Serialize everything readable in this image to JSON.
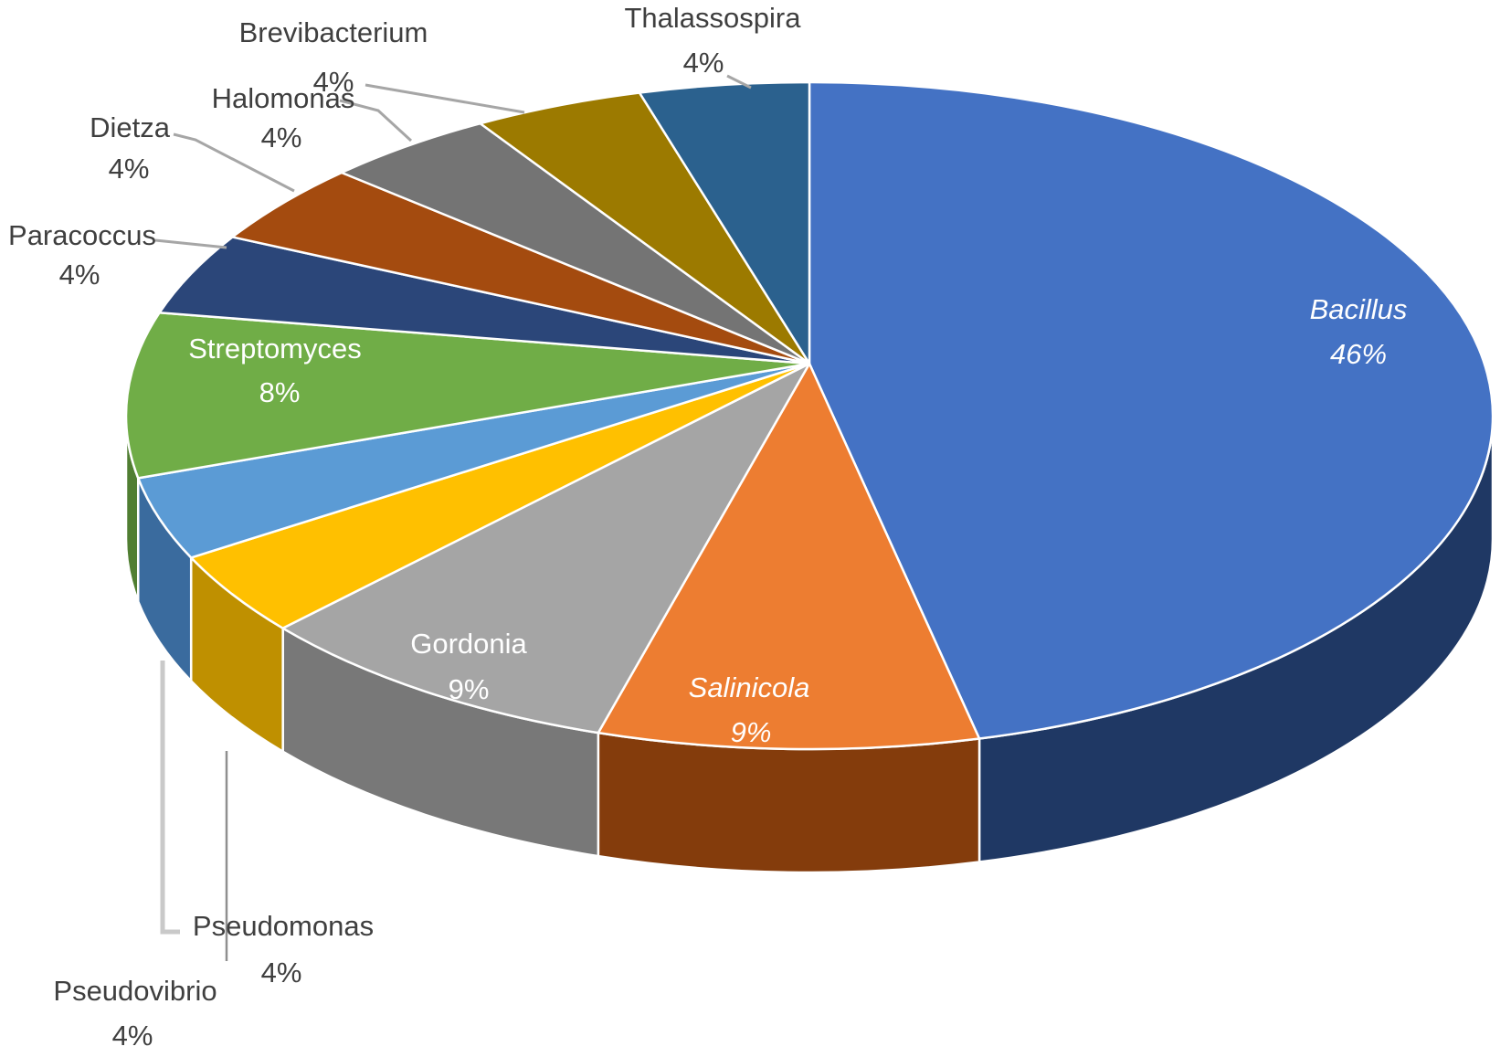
{
  "chart_data": {
    "type": "pie",
    "style": "3d-perspective",
    "title": "",
    "unit": "%",
    "direction": "clockwise",
    "start_angle_deg": 0,
    "legend": "none",
    "label_format": "name + percent",
    "background": "#ffffff",
    "border_color": "#ffffff",
    "outside_label_color": "#3f3f3f",
    "inside_label_color": "#ffffff",
    "leader_line_color": "#a6a6a6",
    "slices": [
      {
        "label": "Bacillus",
        "value": 46,
        "pct_text": "46%",
        "color": "#4472c4",
        "side_color": "#1f3864",
        "label_placement": "inside",
        "italic": true
      },
      {
        "label": "Salinicola",
        "value": 9,
        "pct_text": "9%",
        "color": "#ed7d31",
        "side_color": "#843c0c",
        "label_placement": "inside",
        "italic": true
      },
      {
        "label": "Gordonia",
        "value": 9,
        "pct_text": "9%",
        "color": "#a5a5a5",
        "side_color": "#787878",
        "label_placement": "inside",
        "italic": false
      },
      {
        "label": "Pseudomonas",
        "value": 4,
        "pct_text": "4%",
        "color": "#ffc000",
        "side_color": "#bf9000",
        "label_placement": "outside",
        "italic": false
      },
      {
        "label": "Pseudovibrio",
        "value": 4,
        "pct_text": "4%",
        "color": "#5b9bd5",
        "side_color": "#3a6b9e",
        "label_placement": "outside",
        "italic": false
      },
      {
        "label": "Streptomyces",
        "value": 8,
        "pct_text": "8%",
        "color": "#70ad47",
        "side_color": "#507e32",
        "label_placement": "inside",
        "italic": false
      },
      {
        "label": "Paracoccus",
        "value": 4,
        "pct_text": "4%",
        "color": "#2b4679",
        "side_color": "#1a2f53",
        "label_placement": "outside",
        "italic": false
      },
      {
        "label": "Dietza",
        "value": 4,
        "pct_text": "4%",
        "color": "#a44b0f",
        "side_color": "#6b3009",
        "label_placement": "outside",
        "italic": false
      },
      {
        "label": "Halomonas",
        "value": 4,
        "pct_text": "4%",
        "color": "#747474",
        "side_color": "#4a4a4a",
        "label_placement": "outside",
        "italic": false
      },
      {
        "label": "Brevibacterium",
        "value": 4,
        "pct_text": "4%",
        "color": "#9c7a00",
        "side_color": "#664d00",
        "label_placement": "outside",
        "italic": false
      },
      {
        "label": "Thalassospira",
        "value": 4,
        "pct_text": "4%",
        "color": "#2b618e",
        "side_color": "#173a5a",
        "label_placement": "outside",
        "italic": false
      }
    ]
  }
}
